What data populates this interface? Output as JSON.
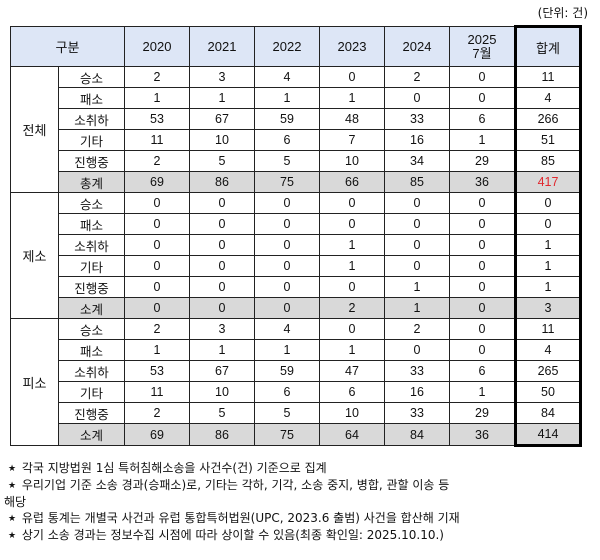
{
  "unit_label": "(단위: 건)",
  "header": {
    "category": "구분",
    "years": [
      "2020",
      "2021",
      "2022",
      "2023",
      "2024"
    ],
    "year_2025_line1": "2025",
    "year_2025_line2": "7월",
    "total": "합계"
  },
  "groups": [
    {
      "name": "전체",
      "rows": [
        {
          "label": "승소",
          "values": [
            "2",
            "3",
            "4",
            "0",
            "2",
            "0"
          ],
          "total": "11"
        },
        {
          "label": "패소",
          "values": [
            "1",
            "1",
            "1",
            "1",
            "0",
            "0"
          ],
          "total": "4"
        },
        {
          "label": "소취하",
          "values": [
            "53",
            "67",
            "59",
            "48",
            "33",
            "6"
          ],
          "total": "266"
        },
        {
          "label": "기타",
          "values": [
            "11",
            "10",
            "6",
            "7",
            "16",
            "1"
          ],
          "total": "51"
        },
        {
          "label": "진행중",
          "values": [
            "2",
            "5",
            "5",
            "10",
            "34",
            "29"
          ],
          "total": "85"
        },
        {
          "label": "총계",
          "values": [
            "69",
            "86",
            "75",
            "66",
            "85",
            "36"
          ],
          "total": "417",
          "summary": true,
          "total_highlight": true
        }
      ]
    },
    {
      "name": "제소",
      "rows": [
        {
          "label": "승소",
          "values": [
            "0",
            "0",
            "0",
            "0",
            "0",
            "0"
          ],
          "total": "0"
        },
        {
          "label": "패소",
          "values": [
            "0",
            "0",
            "0",
            "0",
            "0",
            "0"
          ],
          "total": "0"
        },
        {
          "label": "소취하",
          "values": [
            "0",
            "0",
            "0",
            "1",
            "0",
            "0"
          ],
          "total": "1"
        },
        {
          "label": "기타",
          "values": [
            "0",
            "0",
            "0",
            "1",
            "0",
            "0"
          ],
          "total": "1"
        },
        {
          "label": "진행중",
          "values": [
            "0",
            "0",
            "0",
            "0",
            "1",
            "0"
          ],
          "total": "1"
        },
        {
          "label": "소계",
          "values": [
            "0",
            "0",
            "0",
            "2",
            "1",
            "0"
          ],
          "total": "3",
          "summary": true
        }
      ]
    },
    {
      "name": "피소",
      "rows": [
        {
          "label": "승소",
          "values": [
            "2",
            "3",
            "4",
            "0",
            "2",
            "0"
          ],
          "total": "11"
        },
        {
          "label": "패소",
          "values": [
            "1",
            "1",
            "1",
            "1",
            "0",
            "0"
          ],
          "total": "4"
        },
        {
          "label": "소취하",
          "values": [
            "53",
            "67",
            "59",
            "47",
            "33",
            "6"
          ],
          "total": "265"
        },
        {
          "label": "기타",
          "values": [
            "11",
            "10",
            "6",
            "6",
            "16",
            "1"
          ],
          "total": "50"
        },
        {
          "label": "진행중",
          "values": [
            "2",
            "5",
            "5",
            "10",
            "33",
            "29"
          ],
          "total": "84"
        },
        {
          "label": "소계",
          "values": [
            "69",
            "86",
            "75",
            "64",
            "84",
            "36"
          ],
          "total": "414",
          "summary": true
        }
      ]
    }
  ],
  "colors": {
    "header_bg": "#dde6f6",
    "summary_bg": "#d9d9d9",
    "highlight_total": "#e0282f"
  },
  "notes": {
    "bullet": "*",
    "line1": "각국 지방법원 1심 특허침해소송을 사건수(건) 기준으로 집계",
    "line2": "우리기업 기준 소송 경과(승패소)로, 기타는 각하, 기각, 소송 중지, 병합, 관할 이송 등",
    "line2_wrap": "해당",
    "line3": "유럽 통계는 개별국 사건과 유럽 통합특허법원(UPC, 2023.6 출범) 사건을 합산해 기재",
    "line4": "상기 소송 경과는 정보수집 시점에 따라 상이할 수 있음(최종 확인일: 2025.10.10.)"
  }
}
